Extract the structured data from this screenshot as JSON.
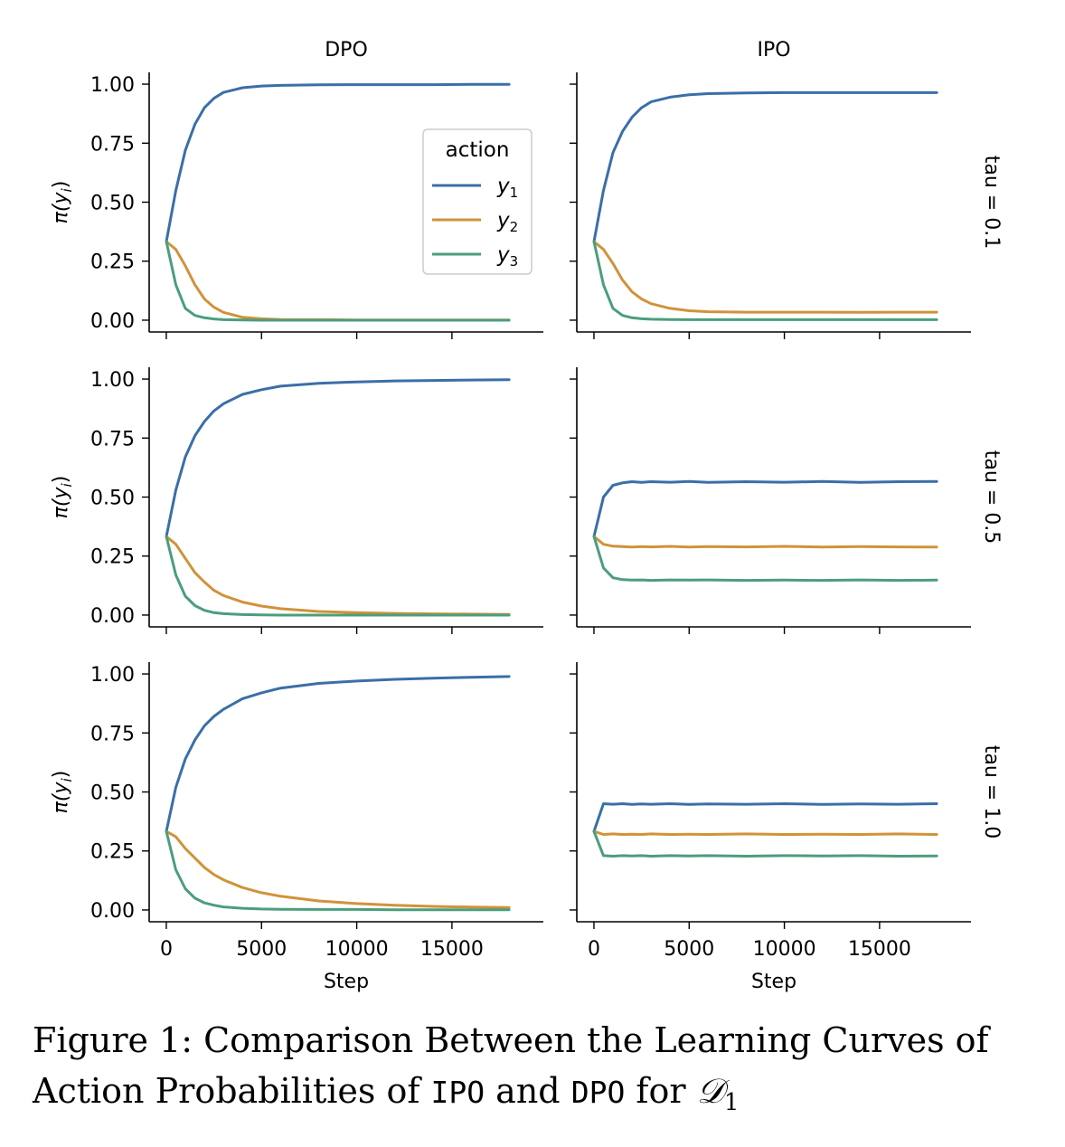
{
  "chart_data": {
    "type": "line",
    "layout": "3x2 facet grid",
    "column_titles": [
      "DPO",
      "IPO"
    ],
    "row_titles": [
      "tau = 0.1",
      "tau = 0.5",
      "tau = 1.0"
    ],
    "xlabel": "Step",
    "ylabel": "π(y_i)",
    "xlim": [
      -900,
      19800
    ],
    "ylim": [
      -0.05,
      1.05
    ],
    "xticks": [
      0,
      5000,
      10000,
      15000
    ],
    "xtick_labels": [
      "0",
      "5000",
      "10000",
      "15000"
    ],
    "yticks": [
      0.0,
      0.25,
      0.5,
      0.75,
      1.0
    ],
    "ytick_labels": [
      "0.00",
      "0.25",
      "0.50",
      "0.75",
      "1.00"
    ],
    "legend": {
      "title": "action",
      "placement": "inside top-right of first panel",
      "entries": [
        "y1",
        "y2",
        "y3"
      ]
    },
    "series_colors": {
      "y1": "#3a6fa8",
      "y2": "#d1923a",
      "y3": "#4b9e7c"
    },
    "x": [
      0,
      500,
      1000,
      1500,
      2000,
      2500,
      3000,
      4000,
      5000,
      6000,
      8000,
      10000,
      12000,
      14000,
      16000,
      18000
    ],
    "panels": [
      {
        "row": "tau = 0.1",
        "column": "DPO",
        "series": [
          {
            "name": "y1",
            "values": [
              0.333,
              0.55,
              0.72,
              0.83,
              0.9,
              0.94,
              0.965,
              0.985,
              0.992,
              0.995,
              0.997,
              0.998,
              0.998,
              0.998,
              0.999,
              0.999
            ]
          },
          {
            "name": "y2",
            "values": [
              0.333,
              0.3,
              0.23,
              0.15,
              0.09,
              0.055,
              0.033,
              0.012,
              0.006,
              0.003,
              0.002,
              0.001,
              0.001,
              0.001,
              0.001,
              0.001
            ]
          },
          {
            "name": "y3",
            "values": [
              0.333,
              0.15,
              0.05,
              0.02,
              0.01,
              0.005,
              0.002,
              0.001,
              0.0,
              0.0,
              0.0,
              0.0,
              0.0,
              0.0,
              0.0,
              0.0
            ]
          }
        ]
      },
      {
        "row": "tau = 0.1",
        "column": "IPO",
        "series": [
          {
            "name": "y1",
            "values": [
              0.333,
              0.55,
              0.71,
              0.8,
              0.86,
              0.9,
              0.925,
              0.945,
              0.955,
              0.96,
              0.963,
              0.964,
              0.964,
              0.964,
              0.964,
              0.964
            ]
          },
          {
            "name": "y2",
            "values": [
              0.333,
              0.3,
              0.24,
              0.17,
              0.12,
              0.09,
              0.07,
              0.05,
              0.04,
              0.036,
              0.034,
              0.034,
              0.034,
              0.033,
              0.034,
              0.034
            ]
          },
          {
            "name": "y3",
            "values": [
              0.333,
              0.15,
              0.05,
              0.02,
              0.01,
              0.006,
              0.004,
              0.003,
              0.002,
              0.002,
              0.002,
              0.002,
              0.002,
              0.002,
              0.002,
              0.002
            ]
          }
        ]
      },
      {
        "row": "tau = 0.5",
        "column": "DPO",
        "series": [
          {
            "name": "y1",
            "values": [
              0.333,
              0.53,
              0.67,
              0.76,
              0.82,
              0.865,
              0.895,
              0.935,
              0.955,
              0.97,
              0.982,
              0.988,
              0.992,
              0.994,
              0.996,
              0.997
            ]
          },
          {
            "name": "y2",
            "values": [
              0.333,
              0.3,
              0.24,
              0.18,
              0.14,
              0.105,
              0.083,
              0.055,
              0.038,
              0.027,
              0.015,
              0.01,
              0.007,
              0.005,
              0.004,
              0.003
            ]
          },
          {
            "name": "y3",
            "values": [
              0.333,
              0.17,
              0.08,
              0.04,
              0.02,
              0.01,
              0.006,
              0.002,
              0.001,
              0.0,
              0.0,
              0.0,
              0.0,
              0.0,
              0.0,
              0.0
            ]
          }
        ]
      },
      {
        "row": "tau = 0.5",
        "column": "IPO",
        "series": [
          {
            "name": "y1",
            "values": [
              0.333,
              0.5,
              0.55,
              0.56,
              0.565,
              0.562,
              0.565,
              0.563,
              0.566,
              0.562,
              0.565,
              0.563,
              0.566,
              0.562,
              0.565,
              0.566
            ]
          },
          {
            "name": "y2",
            "values": [
              0.333,
              0.3,
              0.292,
              0.29,
              0.288,
              0.29,
              0.289,
              0.291,
              0.288,
              0.29,
              0.289,
              0.291,
              0.288,
              0.29,
              0.289,
              0.288
            ]
          },
          {
            "name": "y3",
            "values": [
              0.333,
              0.2,
              0.158,
              0.15,
              0.148,
              0.149,
              0.147,
              0.149,
              0.148,
              0.149,
              0.147,
              0.148,
              0.147,
              0.149,
              0.147,
              0.148
            ]
          }
        ]
      },
      {
        "row": "tau = 1.0",
        "column": "DPO",
        "series": [
          {
            "name": "y1",
            "values": [
              0.333,
              0.52,
              0.64,
              0.72,
              0.78,
              0.82,
              0.85,
              0.895,
              0.92,
              0.94,
              0.96,
              0.97,
              0.977,
              0.982,
              0.986,
              0.989
            ]
          },
          {
            "name": "y2",
            "values": [
              0.333,
              0.31,
              0.26,
              0.22,
              0.18,
              0.15,
              0.128,
              0.095,
              0.073,
              0.058,
              0.038,
              0.027,
              0.02,
              0.015,
              0.012,
              0.01
            ]
          },
          {
            "name": "y3",
            "values": [
              0.333,
              0.17,
              0.09,
              0.05,
              0.03,
              0.02,
              0.013,
              0.007,
              0.004,
              0.003,
              0.002,
              0.002,
              0.001,
              0.001,
              0.001,
              0.001
            ]
          }
        ]
      },
      {
        "row": "tau = 1.0",
        "column": "IPO",
        "series": [
          {
            "name": "y1",
            "values": [
              0.333,
              0.45,
              0.448,
              0.45,
              0.447,
              0.449,
              0.448,
              0.45,
              0.447,
              0.449,
              0.448,
              0.45,
              0.447,
              0.449,
              0.448,
              0.45
            ]
          },
          {
            "name": "y2",
            "values": [
              0.333,
              0.32,
              0.322,
              0.32,
              0.321,
              0.32,
              0.322,
              0.32,
              0.321,
              0.32,
              0.322,
              0.32,
              0.321,
              0.32,
              0.322,
              0.32
            ]
          },
          {
            "name": "y3",
            "values": [
              0.333,
              0.23,
              0.228,
              0.23,
              0.229,
              0.23,
              0.228,
              0.23,
              0.229,
              0.23,
              0.228,
              0.23,
              0.229,
              0.23,
              0.228,
              0.229
            ]
          }
        ]
      }
    ]
  },
  "caption": {
    "prefix": "Figure 1:  Comparison Between the Learning Curves of Action Probabilities of ",
    "method_a": "IPO",
    "conjunction": " and ",
    "method_b": "DPO",
    "suffix": " for ",
    "dataset_symbol": "𝒟",
    "dataset_subscript": "1"
  }
}
